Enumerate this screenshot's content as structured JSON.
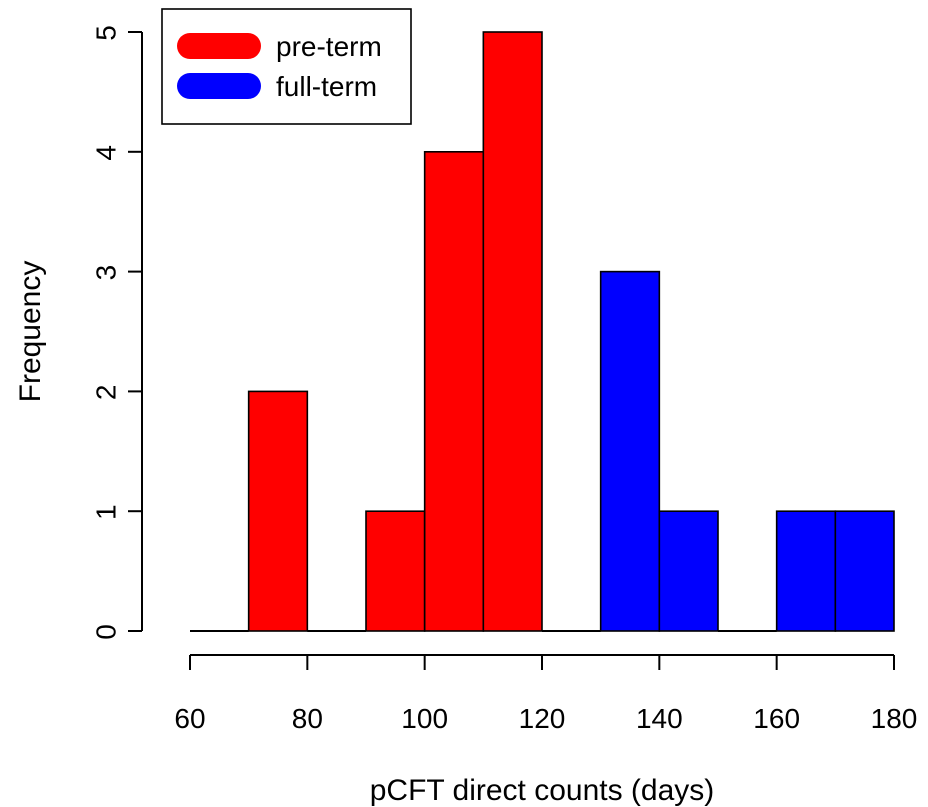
{
  "chart_data": {
    "type": "bar",
    "subtype": "histogram",
    "xlabel": "pCFT direct counts (days)",
    "ylabel": "Frequency",
    "xlim": [
      60,
      180
    ],
    "ylim": [
      0,
      5
    ],
    "xticks": [
      60,
      80,
      100,
      120,
      140,
      160,
      180
    ],
    "yticks": [
      0,
      1,
      2,
      3,
      4,
      5
    ],
    "bin_width": 10,
    "grid": false,
    "legend_position": "top-left",
    "series": [
      {
        "name": "pre-term",
        "color": "#ff0000",
        "bins": [
          {
            "start": 60,
            "end": 70,
            "count": 0
          },
          {
            "start": 70,
            "end": 80,
            "count": 2
          },
          {
            "start": 80,
            "end": 90,
            "count": 0
          },
          {
            "start": 90,
            "end": 100,
            "count": 1
          },
          {
            "start": 100,
            "end": 110,
            "count": 4
          },
          {
            "start": 110,
            "end": 120,
            "count": 5
          }
        ]
      },
      {
        "name": "full-term",
        "color": "#0000ff",
        "bins": [
          {
            "start": 120,
            "end": 130,
            "count": 0
          },
          {
            "start": 130,
            "end": 140,
            "count": 3
          },
          {
            "start": 140,
            "end": 150,
            "count": 1
          },
          {
            "start": 150,
            "end": 160,
            "count": 0
          },
          {
            "start": 160,
            "end": 170,
            "count": 1
          },
          {
            "start": 170,
            "end": 180,
            "count": 1
          }
        ]
      }
    ]
  }
}
